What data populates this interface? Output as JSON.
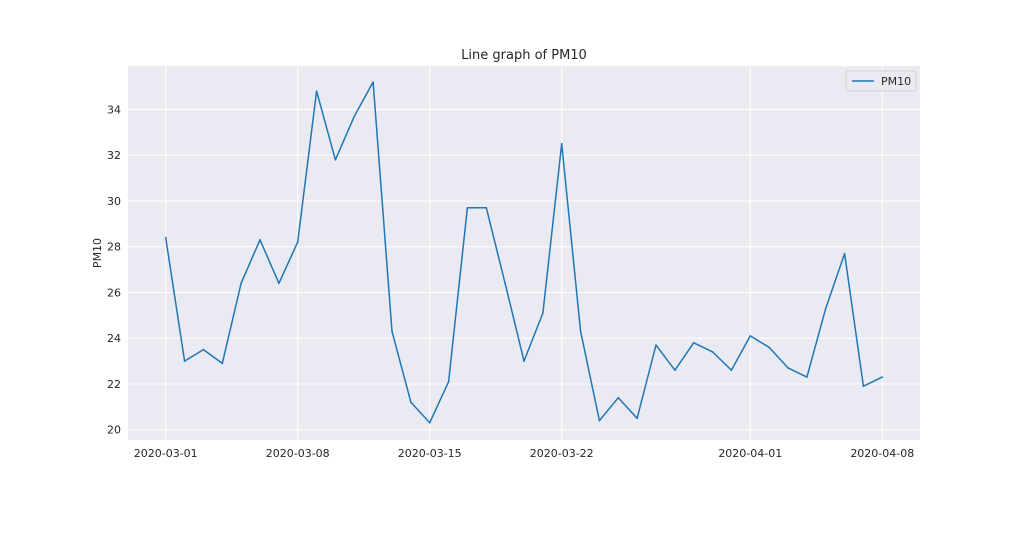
{
  "chart_data": {
    "type": "line",
    "title": "Line graph of PM10",
    "xlabel": "",
    "ylabel": "PM10",
    "x": [
      "2020-03-01",
      "2020-03-02",
      "2020-03-03",
      "2020-03-04",
      "2020-03-05",
      "2020-03-06",
      "2020-03-07",
      "2020-03-08",
      "2020-03-09",
      "2020-03-10",
      "2020-03-11",
      "2020-03-12",
      "2020-03-13",
      "2020-03-14",
      "2020-03-15",
      "2020-03-16",
      "2020-03-17",
      "2020-03-18",
      "2020-03-19",
      "2020-03-20",
      "2020-03-21",
      "2020-03-22",
      "2020-03-23",
      "2020-03-24",
      "2020-03-25",
      "2020-03-26",
      "2020-03-27",
      "2020-03-28",
      "2020-03-29",
      "2020-03-30",
      "2020-03-31",
      "2020-04-01",
      "2020-04-02",
      "2020-04-03",
      "2020-04-04",
      "2020-04-05",
      "2020-04-06",
      "2020-04-07",
      "2020-04-08"
    ],
    "series": [
      {
        "name": "PM10",
        "color": "#1f77b4",
        "values": [
          28.4,
          23.0,
          23.5,
          22.9,
          26.4,
          28.3,
          26.4,
          28.2,
          34.8,
          31.8,
          33.7,
          35.2,
          24.3,
          21.2,
          20.3,
          22.1,
          29.7,
          29.7,
          26.4,
          23.0,
          25.1,
          32.5,
          24.3,
          20.4,
          21.4,
          20.5,
          23.7,
          22.6,
          23.8,
          23.4,
          22.6,
          24.1,
          23.6,
          22.7,
          22.3,
          25.3,
          27.7,
          21.9,
          22.3
        ]
      }
    ],
    "xticks": [
      "2020-03-01",
      "2020-03-08",
      "2020-03-15",
      "2020-03-22",
      "2020-04-01",
      "2020-04-08"
    ],
    "yticks": [
      20,
      22,
      24,
      26,
      28,
      30,
      32,
      34
    ],
    "xlim": [
      "2020-02-28",
      "2020-04-10"
    ],
    "ylim": [
      19.55,
      35.9
    ],
    "grid": true,
    "legend": "top-right",
    "background_color": "#eaeaf2",
    "grid_color": "#ffffff"
  }
}
